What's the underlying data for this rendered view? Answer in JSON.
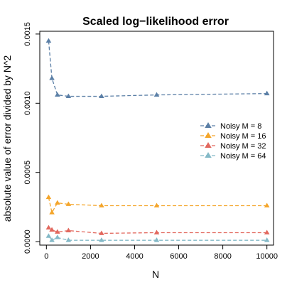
{
  "chart_data": {
    "type": "line",
    "title": "Scaled log−likelihood error",
    "xlabel": "N",
    "ylabel": "absolute value of error divided by N^2",
    "xlim": [
      -300,
      10300
    ],
    "ylim": [
      -2.5e-05,
      0.00152
    ],
    "x_ticks": [
      0,
      2000,
      4000,
      6000,
      8000,
      10000
    ],
    "x_tick_labels": [
      "0",
      "2000",
      "4000",
      "6000",
      "8000",
      "10000"
    ],
    "y_ticks": [
      0.0,
      0.0005,
      0.001,
      0.0015
    ],
    "y_tick_labels": [
      "0.0000",
      "0.0005",
      "0.0010",
      "0.0015"
    ],
    "grid": false,
    "legend_position": "right",
    "x": [
      100,
      250,
      500,
      1000,
      2500,
      5000,
      10000
    ],
    "series": [
      {
        "name": "Noisy M = 8",
        "color": "#5b7fa6",
        "values": [
          0.00145,
          0.00118,
          0.00106,
          0.00105,
          0.00105,
          0.00106,
          0.00107
        ]
      },
      {
        "name": "Noisy M = 16",
        "color": "#f4a52a",
        "values": [
          0.00032,
          0.00021,
          0.00028,
          0.00027,
          0.00026,
          0.00026,
          0.00026
        ]
      },
      {
        "name": "Noisy M = 32",
        "color": "#e2685e",
        "values": [
          0.0001,
          8.5e-05,
          7e-05,
          8e-05,
          6e-05,
          6.5e-05,
          6.5e-05
        ]
      },
      {
        "name": "Noisy M = 64",
        "color": "#84b9c7",
        "values": [
          4e-05,
          1e-05,
          3e-05,
          1e-05,
          1e-05,
          1e-05,
          1e-05
        ]
      }
    ]
  }
}
